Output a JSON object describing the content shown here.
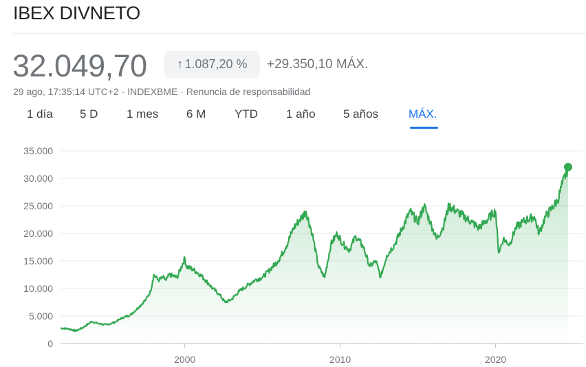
{
  "header": {
    "title": "IBEX DIVNETO",
    "price": "32.049,70",
    "change_arrow": "↑",
    "change_pct": "1.087,20 %",
    "change_abs": "+29.350,10 MÁX.",
    "timestamp": "29 ago, 17:35:14 UTC+2",
    "exchange": "INDEXBME",
    "disclaimer": "Renuncia de responsabilidad",
    "separator": " · "
  },
  "tabs": [
    {
      "label": "1 día"
    },
    {
      "label": "5 D"
    },
    {
      "label": "1 mes"
    },
    {
      "label": "6 M"
    },
    {
      "label": "YTD"
    },
    {
      "label": "1 año"
    },
    {
      "label": "5 años"
    },
    {
      "label": "MÁX.",
      "active": true
    }
  ],
  "colors": {
    "line": "#34a853",
    "accent": "#1a73e8",
    "muted": "#70757a"
  },
  "chart_data": {
    "type": "area",
    "title": "",
    "xlabel": "",
    "ylabel": "",
    "xlim": [
      1992,
      2024.67
    ],
    "ylim": [
      0,
      35000
    ],
    "yticks": [
      "35.000",
      "30.000",
      "25.000",
      "20.000",
      "15.000",
      "10.000",
      "5.000",
      "0"
    ],
    "ytick_values": [
      35000,
      30000,
      25000,
      20000,
      15000,
      10000,
      5000,
      0
    ],
    "xticks": [
      "2000",
      "2010",
      "2020"
    ],
    "xtick_values": [
      2000,
      2010,
      2020
    ],
    "grid": true,
    "series": [
      {
        "x": [
          1992.0,
          1992.5,
          1993.0,
          1993.5,
          1994.0,
          1994.5,
          1995.0,
          1995.5,
          1996.0,
          1996.5,
          1997.0,
          1997.5,
          1997.8,
          1998.0,
          1998.3,
          1998.6,
          1998.8,
          1999.0,
          1999.5,
          2000.0,
          2000.1,
          2000.5,
          2001.0,
          2001.5,
          2001.8,
          2002.2,
          2002.6,
          2003.0,
          2003.5,
          2004.0,
          2004.5,
          2005.0,
          2005.5,
          2006.0,
          2006.5,
          2007.0,
          2007.4,
          2007.8,
          2008.2,
          2008.6,
          2009.0,
          2009.4,
          2009.8,
          2010.2,
          2010.6,
          2011.0,
          2011.5,
          2011.9,
          2012.3,
          2012.6,
          2013.0,
          2013.5,
          2014.0,
          2014.5,
          2015.0,
          2015.4,
          2015.8,
          2016.2,
          2016.6,
          2017.0,
          2017.5,
          2018.0,
          2018.5,
          2018.9,
          2019.3,
          2019.8,
          2020.0,
          2020.2,
          2020.5,
          2020.9,
          2021.3,
          2021.7,
          2022.0,
          2022.5,
          2022.8,
          2023.2,
          2023.6,
          2024.0,
          2024.3,
          2024.67
        ],
        "y": [
          2800,
          2700,
          2300,
          3000,
          4000,
          3600,
          3400,
          3900,
          4700,
          5200,
          6500,
          8000,
          9500,
          12500,
          11500,
          12000,
          11500,
          12500,
          12000,
          15500,
          14000,
          13500,
          12500,
          11000,
          10000,
          9000,
          7500,
          8000,
          9500,
          10500,
          11500,
          12000,
          13500,
          15000,
          17500,
          21000,
          22500,
          24000,
          20000,
          14000,
          12000,
          18000,
          20000,
          18000,
          17000,
          19500,
          17500,
          14000,
          15000,
          12000,
          16000,
          18000,
          21000,
          24000,
          22000,
          25000,
          22000,
          19000,
          21000,
          25000,
          24000,
          23000,
          22000,
          21000,
          22000,
          23500,
          24000,
          16500,
          19000,
          18000,
          21000,
          22000,
          22500,
          23000,
          20000,
          23000,
          24500,
          26000,
          29000,
          32049.7
        ]
      }
    ],
    "last_value": 32049.7
  }
}
